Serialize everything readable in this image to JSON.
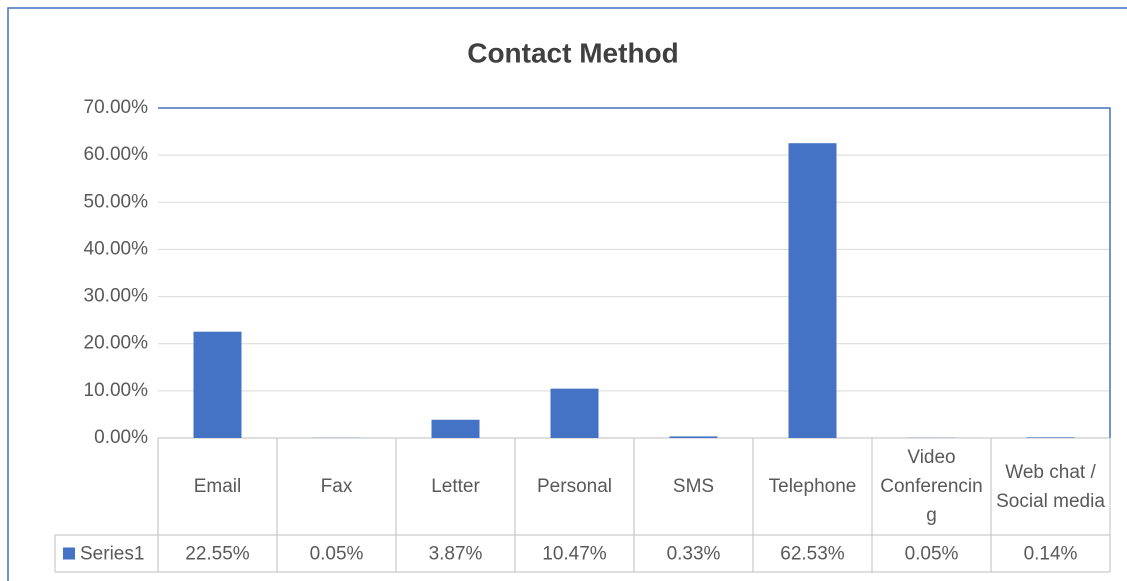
{
  "chart_data": {
    "type": "bar",
    "title": "Contact Method",
    "categories": [
      "Email",
      "Fax",
      "Letter",
      "Personal",
      "SMS",
      "Telephone",
      "Video Conferencing",
      "Web chat / Social media"
    ],
    "series": [
      {
        "name": "Series1",
        "color": "#4472c4",
        "values": [
          22.55,
          0.05,
          3.87,
          10.47,
          0.33,
          62.53,
          0.05,
          0.14
        ],
        "value_labels": [
          "22.55%",
          "0.05%",
          "3.87%",
          "10.47%",
          "0.33%",
          "62.53%",
          "0.05%",
          "0.14%"
        ]
      }
    ],
    "ylim": [
      0,
      70
    ],
    "yticks": [
      {
        "value": 0,
        "label": "0.00%"
      },
      {
        "value": 10,
        "label": "10.00%"
      },
      {
        "value": 20,
        "label": "20.00%"
      },
      {
        "value": 30,
        "label": "30.00%"
      },
      {
        "value": 40,
        "label": "40.00%"
      },
      {
        "value": 50,
        "label": "50.00%"
      },
      {
        "value": 60,
        "label": "60.00%"
      },
      {
        "value": 70,
        "label": "70.00%"
      }
    ],
    "grid": true
  }
}
